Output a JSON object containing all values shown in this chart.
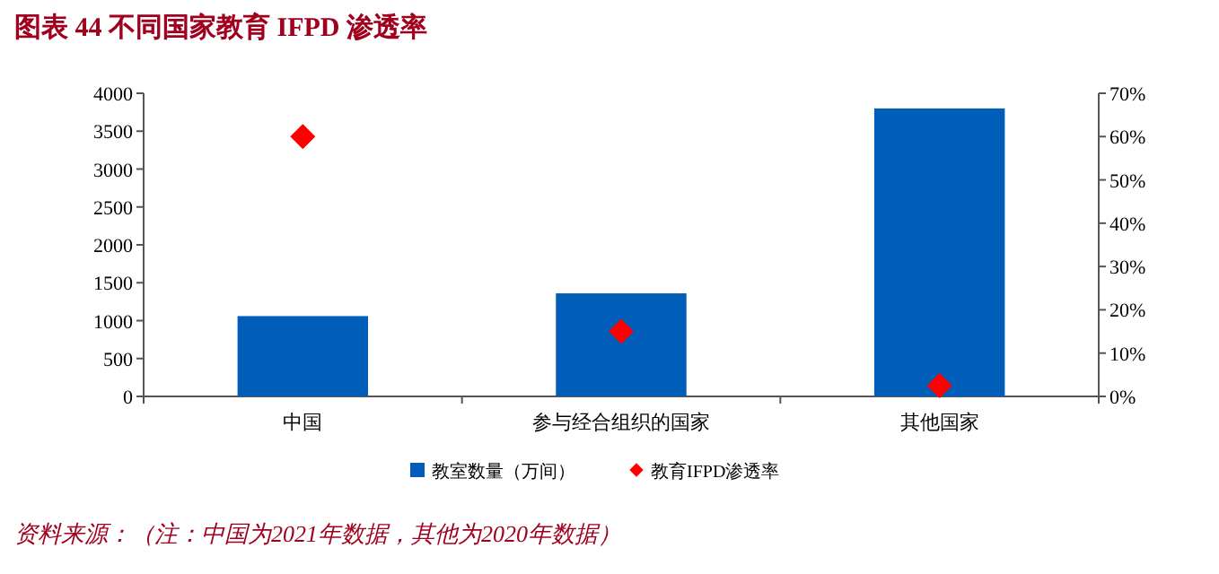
{
  "chart_data": {
    "type": "bar",
    "title": "图表 44 不同国家教育 IFPD 渗透率",
    "categories": [
      "中国",
      "参与经合组织的国家",
      "其他国家"
    ],
    "series": [
      {
        "name": "教室数量（万间）",
        "color": "#005eb8",
        "values": [
          1060,
          1360,
          3800
        ]
      },
      {
        "name": "教育IFPD渗透率",
        "type": "scatter",
        "axis": "y2",
        "color": "#ff0000",
        "marker": "diamond",
        "values": [
          60,
          15,
          2.5
        ]
      }
    ],
    "ylim": [
      0,
      4000
    ],
    "yticks": [
      0,
      500,
      1000,
      1500,
      2000,
      2500,
      3000,
      3500,
      4000
    ],
    "y2lim": [
      0,
      70
    ],
    "y2ticks": [
      {
        "value": 0,
        "label": "0%"
      },
      {
        "value": 10,
        "label": "10%"
      },
      {
        "value": 20,
        "label": "20%"
      },
      {
        "value": 30,
        "label": "30%"
      },
      {
        "value": 40,
        "label": "40%"
      },
      {
        "value": 50,
        "label": "50%"
      },
      {
        "value": 60,
        "label": "60%"
      },
      {
        "value": 70,
        "label": "70%"
      }
    ],
    "legend": "bottom",
    "grid": false,
    "annotations": [
      "资料来源：（注：中国为2021年数据，其他为2020年数据）"
    ]
  }
}
